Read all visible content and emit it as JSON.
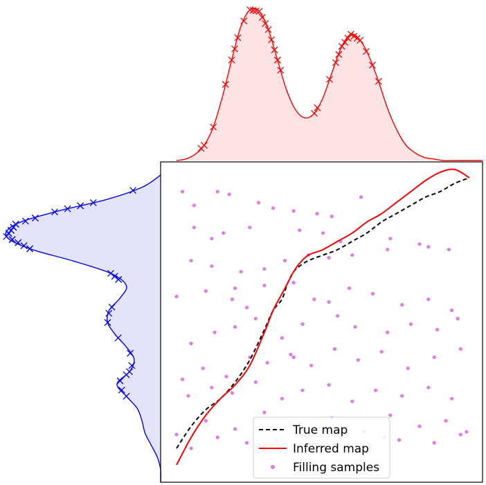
{
  "chart_data": [
    {
      "type": "area",
      "panel": "top-marginal",
      "color": "#ff0000",
      "fill": "#fde3e3",
      "density_curve": {
        "x": [
          0.0,
          0.03,
          0.06,
          0.09,
          0.12,
          0.15,
          0.18,
          0.21,
          0.24,
          0.27,
          0.3,
          0.33,
          0.36,
          0.39,
          0.42,
          0.45,
          0.48,
          0.51,
          0.54,
          0.57,
          0.6,
          0.63,
          0.66,
          0.69,
          0.72,
          0.75,
          0.78,
          0.81,
          0.84,
          0.87,
          0.9,
          0.93,
          0.96,
          1.0
        ],
        "y": [
          0.0,
          0.01,
          0.04,
          0.1,
          0.22,
          0.42,
          0.66,
          0.88,
          0.99,
          0.98,
          0.86,
          0.66,
          0.46,
          0.33,
          0.28,
          0.31,
          0.42,
          0.59,
          0.75,
          0.83,
          0.79,
          0.68,
          0.52,
          0.34,
          0.2,
          0.1,
          0.05,
          0.02,
          0.01,
          0.0,
          0.0,
          0.0,
          0.0,
          0.0
        ]
      },
      "samples_x": [
        0.08,
        0.09,
        0.12,
        0.16,
        0.18,
        0.19,
        0.2,
        0.22,
        0.24,
        0.25,
        0.26,
        0.27,
        0.28,
        0.29,
        0.3,
        0.31,
        0.32,
        0.33,
        0.33,
        0.34,
        0.45,
        0.46,
        0.5,
        0.52,
        0.53,
        0.54,
        0.55,
        0.56,
        0.57,
        0.58,
        0.59,
        0.6,
        0.62,
        0.64,
        0.66
      ]
    },
    {
      "type": "area",
      "panel": "left-marginal",
      "color": "#0000ff",
      "fill": "#e3e3fa",
      "density_curve": {
        "y": [
          1.0,
          0.96,
          0.92,
          0.88,
          0.84,
          0.8,
          0.76,
          0.72,
          0.68,
          0.64,
          0.6,
          0.56,
          0.52,
          0.48,
          0.44,
          0.4,
          0.36,
          0.32,
          0.28,
          0.24,
          0.2,
          0.16,
          0.12,
          0.08,
          0.04,
          0.0
        ],
        "x": [
          0.0,
          0.12,
          0.35,
          0.68,
          0.93,
          0.99,
          0.84,
          0.56,
          0.32,
          0.22,
          0.26,
          0.33,
          0.34,
          0.29,
          0.22,
          0.17,
          0.2,
          0.28,
          0.22,
          0.15,
          0.12,
          0.1,
          0.06,
          0.02,
          0.0,
          0.0
        ]
      },
      "samples_y": [
        0.95,
        0.91,
        0.9,
        0.9,
        0.89,
        0.88,
        0.86,
        0.86,
        0.85,
        0.84,
        0.84,
        0.83,
        0.83,
        0.82,
        0.82,
        0.81,
        0.81,
        0.8,
        0.79,
        0.79,
        0.78,
        0.78,
        0.77,
        0.76,
        0.76,
        0.68,
        0.67,
        0.66,
        0.66,
        0.57,
        0.55,
        0.52,
        0.47,
        0.42,
        0.38,
        0.36,
        0.35,
        0.33,
        0.3,
        0.28
      ]
    },
    {
      "type": "line",
      "panel": "main",
      "xlim": [
        0,
        1
      ],
      "ylim": [
        0,
        1
      ],
      "grid": false,
      "legend_position": "bottom-center",
      "series": [
        {
          "name": "True map",
          "style": "dashed",
          "color": "#000000",
          "x": [
            0.0,
            0.05,
            0.1,
            0.15,
            0.2,
            0.25,
            0.3,
            0.33,
            0.36,
            0.38,
            0.4,
            0.42,
            0.45,
            0.5,
            0.55,
            0.6,
            0.65,
            0.7,
            0.75,
            0.8,
            0.85,
            0.9,
            0.95,
            1.0
          ],
          "y": [
            0.02,
            0.1,
            0.16,
            0.2,
            0.26,
            0.34,
            0.45,
            0.52,
            0.56,
            0.62,
            0.66,
            0.68,
            0.7,
            0.72,
            0.74,
            0.77,
            0.8,
            0.84,
            0.87,
            0.9,
            0.93,
            0.95,
            0.98,
            1.0
          ]
        },
        {
          "name": "Inferred map",
          "style": "solid",
          "color": "#ff0000",
          "x": [
            0.0,
            0.05,
            0.1,
            0.15,
            0.2,
            0.25,
            0.3,
            0.33,
            0.36,
            0.38,
            0.4,
            0.42,
            0.45,
            0.5,
            0.55,
            0.6,
            0.65,
            0.7,
            0.75,
            0.8,
            0.85,
            0.9,
            0.95,
            1.0
          ],
          "y": [
            -0.04,
            0.06,
            0.14,
            0.2,
            0.25,
            0.32,
            0.44,
            0.52,
            0.58,
            0.62,
            0.66,
            0.69,
            0.72,
            0.74,
            0.77,
            0.8,
            0.84,
            0.87,
            0.91,
            0.95,
            0.99,
            1.02,
            1.03,
            1.0
          ]
        },
        {
          "name": "Filling samples",
          "style": "markers",
          "color": "#e07be8",
          "x": [
            0.02,
            0.14,
            0.06,
            0.18,
            0.28,
            0.33,
            0.4,
            0.48,
            0.53,
            0.63,
            0.06,
            0.12,
            0.16,
            0.25,
            0.42,
            0.5,
            0.56,
            0.73,
            0.86,
            0.05,
            0.12,
            0.22,
            0.3,
            0.37,
            0.45,
            0.52,
            0.6,
            0.72,
            0.83,
            0.93,
            0.0,
            0.1,
            0.19,
            0.24,
            0.3,
            0.4,
            0.47,
            0.52,
            0.59,
            0.67,
            0.77,
            0.86,
            0.94,
            0.05,
            0.13,
            0.2,
            0.27,
            0.36,
            0.43,
            0.55,
            0.61,
            0.72,
            0.8,
            0.89,
            0.96,
            0.02,
            0.09,
            0.17,
            0.25,
            0.31,
            0.39,
            0.46,
            0.54,
            0.62,
            0.7,
            0.79,
            0.88,
            0.97,
            0.04,
            0.12,
            0.19,
            0.27,
            0.36,
            0.43,
            0.52,
            0.6,
            0.68,
            0.77,
            0.86,
            0.94,
            0.0,
            0.1,
            0.2,
            0.3,
            0.42,
            0.53,
            0.64,
            0.73,
            0.83,
            0.92,
            0.99,
            0.05,
            0.14,
            0.24,
            0.34,
            0.46,
            0.56,
            0.66,
            0.76,
            0.88,
            0.97,
            0.71,
            0.4,
            0.2
          ],
          "y": [
            0.95,
            0.95,
            0.9,
            0.94,
            0.91,
            0.89,
            0.88,
            0.87,
            0.86,
            0.93,
            0.82,
            0.78,
            0.8,
            0.82,
            0.81,
            0.8,
            0.77,
            0.78,
            0.75,
            0.7,
            0.68,
            0.66,
            0.67,
            0.7,
            0.72,
            0.71,
            0.72,
            0.74,
            0.76,
            0.74,
            0.57,
            0.59,
            0.56,
            0.53,
            0.61,
            0.62,
            0.56,
            0.55,
            0.6,
            0.58,
            0.54,
            0.56,
            0.52,
            0.4,
            0.44,
            0.46,
            0.49,
            0.42,
            0.47,
            0.5,
            0.46,
            0.44,
            0.47,
            0.45,
            0.49,
            0.27,
            0.31,
            0.28,
            0.35,
            0.33,
            0.36,
            0.32,
            0.38,
            0.34,
            0.37,
            0.31,
            0.35,
            0.38,
            0.21,
            0.24,
            0.22,
            0.26,
            0.2,
            0.23,
            0.25,
            0.19,
            0.23,
            0.21,
            0.24,
            0.2,
            0.07,
            0.12,
            0.09,
            0.15,
            0.11,
            0.13,
            0.08,
            0.14,
            0.1,
            0.12,
            0.08,
            0.02,
            0.06,
            0.04,
            0.05,
            0.03,
            0.06,
            0.02,
            0.05,
            0.04,
            0.07,
            0.06,
            0.35,
            0.6
          ]
        }
      ]
    }
  ],
  "legend": {
    "items": [
      {
        "label": "True map"
      },
      {
        "label": "Inferred map"
      },
      {
        "label": "Filling samples"
      }
    ]
  }
}
